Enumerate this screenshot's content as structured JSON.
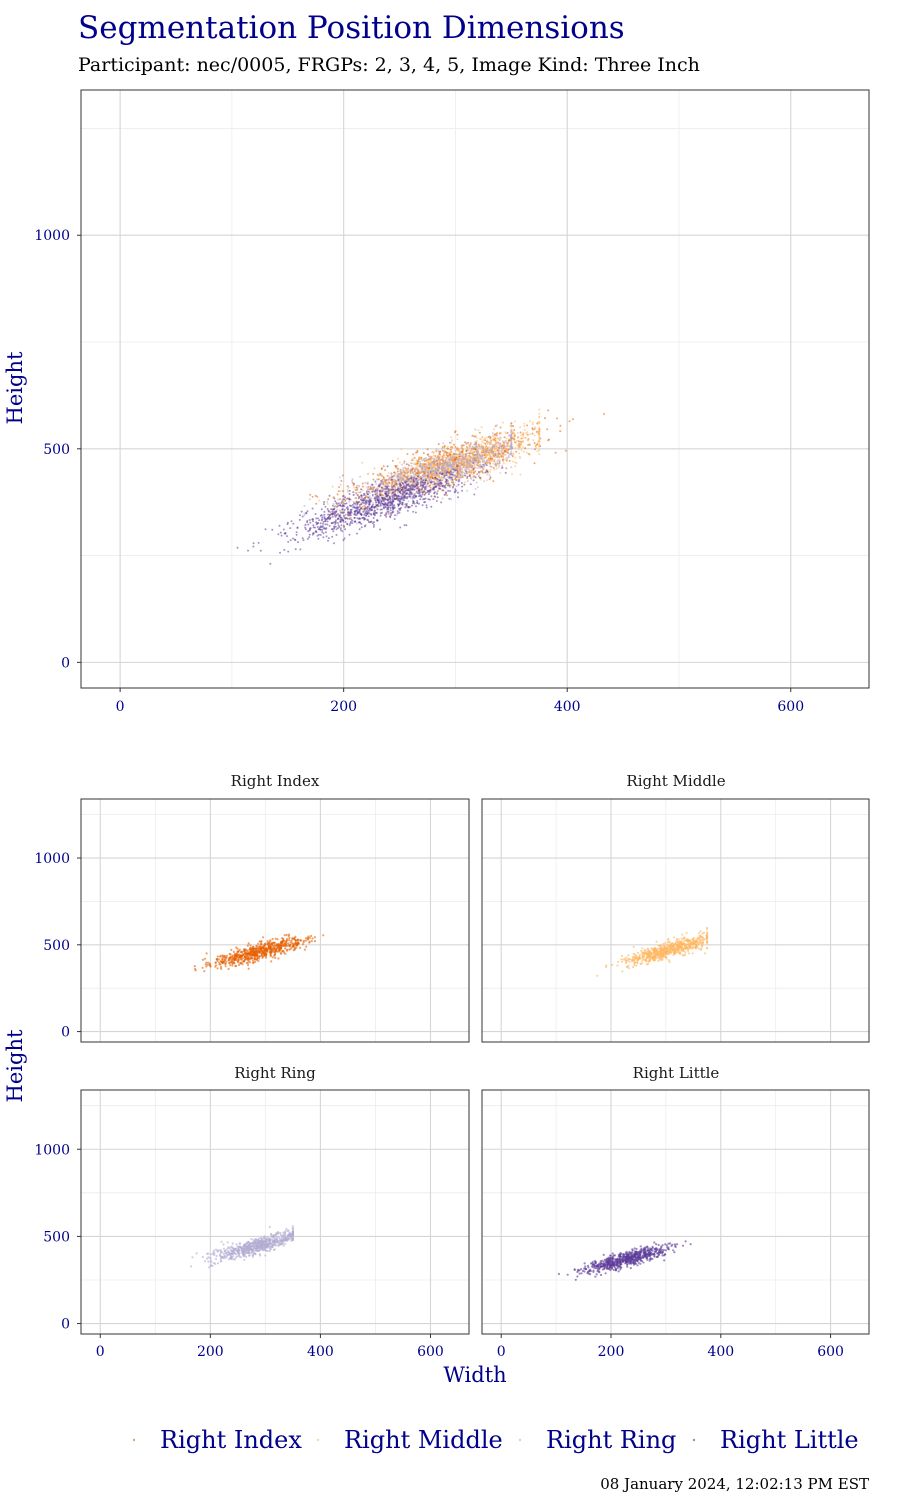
{
  "title": "Segmentation Position Dimensions",
  "subtitle": "Participant: nec/0005, FRGPs: 2, 3, 4, 5, Image Kind: Three Inch",
  "caption": "08 January 2024, 12:02:13 PM EST",
  "colors": {
    "Right Index": "#E66101",
    "Right Middle": "#FDB863",
    "Right Ring": "#B2ABD2",
    "Right Little": "#5E3C99",
    "text_accent": "#00008B"
  },
  "chart_data": [
    {
      "type": "scatter",
      "panel": "combined",
      "xlabel": "",
      "ylabel": "Height",
      "xlim": [
        -35,
        670
      ],
      "ylim": [
        -60,
        1340
      ],
      "x_ticks": [
        0,
        200,
        400,
        600
      ],
      "y_ticks": [
        0,
        500,
        1000
      ],
      "grid": true,
      "series": [
        {
          "name": "Right Index",
          "center": [
            290,
            460
          ],
          "spread_x": 45,
          "spread_y": 42,
          "x_range": [
            150,
            465
          ],
          "y_range": [
            280,
            590
          ]
        },
        {
          "name": "Right Middle",
          "center": [
            305,
            470
          ],
          "spread_x": 42,
          "spread_y": 40,
          "x_range": [
            175,
            375
          ],
          "y_range": [
            200,
            600
          ]
        },
        {
          "name": "Right Ring",
          "center": [
            285,
            445
          ],
          "spread_x": 42,
          "spread_y": 40,
          "x_range": [
            165,
            350
          ],
          "y_range": [
            290,
            560
          ]
        },
        {
          "name": "Right Little",
          "center": [
            230,
            370
          ],
          "spread_x": 40,
          "spread_y": 38,
          "x_range": [
            105,
            345
          ],
          "y_range": [
            230,
            520
          ]
        }
      ]
    },
    {
      "type": "scatter",
      "panel": "Right Index",
      "title": "Right Index",
      "xlim": [
        -35,
        670
      ],
      "ylim": [
        -60,
        1340
      ],
      "x_ticks": [
        0,
        200,
        400,
        600
      ],
      "y_ticks": [
        0,
        500,
        1000
      ],
      "series": [
        {
          "name": "Right Index",
          "center": [
            290,
            460
          ],
          "spread_x": 45,
          "spread_y": 42,
          "x_range": [
            150,
            465
          ],
          "y_range": [
            280,
            590
          ]
        }
      ]
    },
    {
      "type": "scatter",
      "panel": "Right Middle",
      "title": "Right Middle",
      "xlim": [
        -35,
        670
      ],
      "ylim": [
        -60,
        1340
      ],
      "x_ticks": [
        0,
        200,
        400,
        600
      ],
      "y_ticks": [
        0,
        500,
        1000
      ],
      "series": [
        {
          "name": "Right Middle",
          "center": [
            305,
            470
          ],
          "spread_x": 42,
          "spread_y": 40,
          "x_range": [
            175,
            375
          ],
          "y_range": [
            200,
            600
          ]
        }
      ]
    },
    {
      "type": "scatter",
      "panel": "Right Ring",
      "title": "Right Ring",
      "xlim": [
        -35,
        670
      ],
      "ylim": [
        -60,
        1340
      ],
      "x_ticks": [
        0,
        200,
        400,
        600
      ],
      "y_ticks": [
        0,
        500,
        1000
      ],
      "series": [
        {
          "name": "Right Ring",
          "center": [
            285,
            445
          ],
          "spread_x": 42,
          "spread_y": 40,
          "x_range": [
            165,
            350
          ],
          "y_range": [
            290,
            560
          ]
        }
      ]
    },
    {
      "type": "scatter",
      "panel": "Right Little",
      "title": "Right Little",
      "xlim": [
        -35,
        670
      ],
      "ylim": [
        -60,
        1340
      ],
      "x_ticks": [
        0,
        200,
        400,
        600
      ],
      "y_ticks": [
        0,
        500,
        1000
      ],
      "series": [
        {
          "name": "Right Little",
          "center": [
            230,
            370
          ],
          "spread_x": 40,
          "spread_y": 38,
          "x_range": [
            105,
            345
          ],
          "y_range": [
            230,
            520
          ]
        }
      ]
    }
  ],
  "facets": {
    "xlabel": "Width",
    "ylabel": "Height"
  },
  "legend": {
    "position": "bottom",
    "items": [
      "Right Index",
      "Right Middle",
      "Right Ring",
      "Right Little"
    ]
  }
}
